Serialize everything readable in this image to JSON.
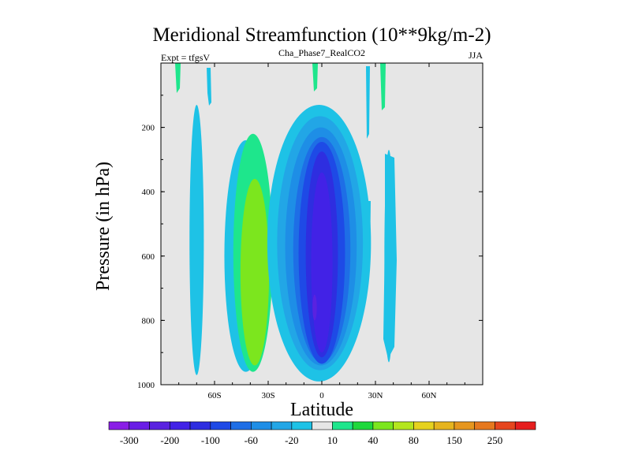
{
  "chart_data": {
    "type": "heatmap",
    "subtype": "filled-contour",
    "title": "Meridional Streamfunction (10**9kg/m-2)",
    "left_label": "Expt = tfgsV",
    "center_label": "Cha_Phase7_RealCO2",
    "right_label": "JJA",
    "xlabel": "Latitude",
    "ylabel": "Pressure (in hPa)",
    "xlim": [
      -90,
      90
    ],
    "ylim": [
      1000,
      0
    ],
    "x_ticks": [
      {
        "value": -60,
        "label": "60S"
      },
      {
        "value": -30,
        "label": "30S"
      },
      {
        "value": 0,
        "label": "0"
      },
      {
        "value": 30,
        "label": "30N"
      },
      {
        "value": 60,
        "label": "60N"
      }
    ],
    "y_ticks": [
      {
        "value": 200,
        "label": "200"
      },
      {
        "value": 400,
        "label": "400"
      },
      {
        "value": 600,
        "label": "600"
      },
      {
        "value": 800,
        "label": "800"
      },
      {
        "value": 1000,
        "label": "1000"
      }
    ],
    "background_color": "#e6e6e6",
    "colorbar": {
      "colors": [
        "#8a1ee6",
        "#6a1ee6",
        "#5a22e0",
        "#4222e6",
        "#2e2ee0",
        "#1e4ae6",
        "#1e6ee6",
        "#1e8ee6",
        "#22a6e6",
        "#1ec2e6",
        "#e6e6e6",
        "#1ee68c",
        "#1ed83c",
        "#7ce61e",
        "#b4e61e",
        "#e6d21e",
        "#e6b41e",
        "#e6961e",
        "#e6781e",
        "#e6461e",
        "#e61e1e"
      ],
      "labels": [
        "-300",
        "-200",
        "-100",
        "-60",
        "-20",
        "10",
        "40",
        "80",
        "150",
        "250"
      ],
      "label_boundaries": [
        1,
        3,
        5,
        7,
        9,
        11,
        13,
        15,
        17,
        19
      ]
    },
    "regions": [
      {
        "color": "#1ec2e6",
        "value": "-20 to -10",
        "center": [
          -70,
          550
        ],
        "half_width": [
          4,
          420
        ]
      },
      {
        "color": "#1ec2e6",
        "value": "-20 to -10",
        "center": [
          -42.5,
          600
        ],
        "half_width": [
          12,
          360
        ]
      },
      {
        "color": "#1ee68c",
        "value": "10 to 20",
        "center": [
          -38.5,
          590
        ],
        "half_width": [
          11,
          370
        ]
      },
      {
        "color": "#7ce61e",
        "value": "40 to 60",
        "center": [
          -37.5,
          650
        ],
        "half_width": [
          8,
          290
        ]
      },
      {
        "color": "#1ec2e6",
        "value": "-20 to -10",
        "center": [
          -1.5,
          560
        ],
        "half_width": [
          29,
          430
        ]
      },
      {
        "color": "#22a6e6",
        "value": "-40 to -20",
        "center": [
          -1,
          560
        ],
        "half_width": [
          24,
          395
        ]
      },
      {
        "color": "#1e8ee6",
        "value": "-60 to -40",
        "center": [
          -0.5,
          570
        ],
        "half_width": [
          20,
          370
        ]
      },
      {
        "color": "#1e6ee6",
        "value": "-80 to -60",
        "center": [
          0,
          580
        ],
        "half_width": [
          16,
          350
        ]
      },
      {
        "color": "#1e4ae6",
        "value": "-100 to -80",
        "center": [
          0,
          590
        ],
        "half_width": [
          13,
          345
        ]
      },
      {
        "color": "#2e2ee0",
        "value": "-150 to -100",
        "center": [
          0,
          595
        ],
        "half_width": [
          9,
          320
        ]
      },
      {
        "color": "#4222e6",
        "value": "-200 to -150",
        "center": [
          0,
          620
        ],
        "half_width": [
          6,
          280
        ]
      },
      {
        "color": "#5a22e0",
        "value": "-250 to -200",
        "center": [
          -4,
          760
        ],
        "half_width": [
          1.2,
          40
        ]
      },
      {
        "color": "#1ec2e6",
        "value": "-20 to -10",
        "center": [
          37.5,
          600
        ],
        "half_width": [
          2.5,
          330
        ]
      }
    ]
  }
}
